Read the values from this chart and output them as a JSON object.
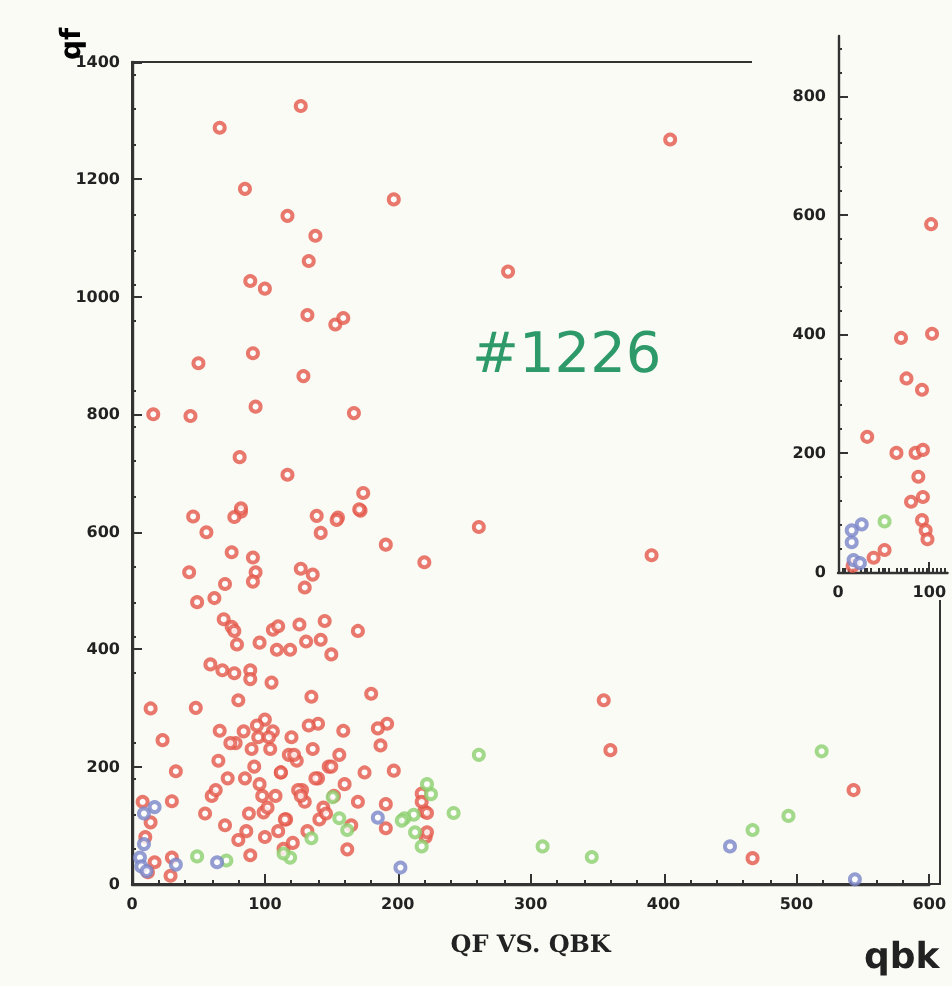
{
  "chart_data": [
    {
      "type": "scatter",
      "xlabel": "QF VS. QBK",
      "ylabel": "qf",
      "annotations": [
        "#1226",
        "qbk"
      ],
      "xlim": [
        0,
        600
      ],
      "xticks": [
        0,
        100,
        200,
        300,
        400,
        500,
        600
      ],
      "ylim": [
        0,
        1400
      ],
      "yticks": [
        0,
        200,
        400,
        600,
        800,
        1000,
        1200,
        1400
      ],
      "marker": "circle",
      "series": [
        {
          "color": "#e4574a",
          "x": [
            127,
            66,
            85,
            197,
            117,
            138,
            133,
            89,
            100,
            132,
            153,
            159,
            91,
            50,
            129,
            16,
            44,
            93,
            167,
            81,
            117,
            174,
            172,
            46,
            82,
            139,
            155,
            405,
            283,
            56,
            77,
            82,
            142,
            154,
            171,
            261,
            191,
            220,
            43,
            75,
            91,
            93,
            91,
            70,
            127,
            136,
            130,
            49,
            62,
            69,
            75,
            77,
            106,
            110,
            126,
            145,
            170,
            79,
            96,
            109,
            119,
            131,
            142,
            150,
            59,
            68,
            77,
            89,
            89,
            105,
            135,
            180,
            14,
            48,
            80,
            140,
            192,
            23,
            66,
            159,
            185,
            187,
            33,
            197,
            30,
            218,
            8,
            14,
            30,
            29,
            89,
            162,
            221,
            220,
            191,
            191,
            99,
            391,
            355,
            360,
            218,
            222,
            222,
            543,
            467,
            12,
            17,
            10,
            60,
            65,
            72,
            78,
            84,
            88,
            92,
            96,
            100,
            104,
            108,
            112,
            116,
            120,
            124,
            128,
            132,
            136,
            140,
            144,
            148,
            152,
            156,
            160,
            165,
            170,
            175,
            55,
            63,
            70,
            85,
            95,
            102,
            110,
            118,
            125,
            133,
            141,
            150,
            74,
            86,
            98,
            106,
            114,
            122,
            130,
            138,
            146,
            80,
            94,
            103,
            115,
            121,
            127,
            112,
            100,
            90
          ],
          "values": [
            1325,
            1288,
            1184,
            1166,
            1138,
            1104,
            1061,
            1027,
            1014,
            969,
            953,
            964,
            904,
            887,
            865,
            800,
            797,
            813,
            802,
            727,
            697,
            666,
            636,
            626,
            634,
            627,
            624,
            1268,
            1043,
            599,
            625,
            640,
            598,
            620,
            638,
            608,
            578,
            548,
            531,
            565,
            556,
            531,
            515,
            511,
            537,
            527,
            505,
            480,
            487,
            451,
            438,
            431,
            433,
            439,
            442,
            448,
            431,
            408,
            411,
            399,
            399,
            413,
            416,
            391,
            374,
            364,
            359,
            364,
            349,
            343,
            319,
            324,
            299,
            300,
            313,
            273,
            273,
            245,
            261,
            261,
            265,
            236,
            192,
            193,
            141,
            154,
            140,
            105,
            45,
            14,
            49,
            59,
            80,
            124,
            95,
            136,
            122,
            560,
            313,
            228,
            140,
            121,
            88,
            160,
            44,
            20,
            37,
            80,
            150,
            210,
            180,
            240,
            260,
            120,
            200,
            170,
            280,
            230,
            150,
            190,
            110,
            250,
            210,
            160,
            90,
            230,
            180,
            130,
            200,
            150,
            220,
            170,
            100,
            140,
            190,
            120,
            160,
            100,
            180,
            250,
            130,
            90,
            220,
            160,
            270,
            110,
            200,
            240,
            90,
            150,
            260,
            60,
            220,
            140,
            180,
            120,
            75,
            270,
            250,
            110,
            70,
            150,
            190,
            80,
            230
          ]
        },
        {
          "color": "#8ccf6e",
          "x": [
            261,
            519,
            225,
            212,
            205,
            242,
            213,
            218,
            309,
            346,
            494,
            467,
            49,
            71,
            222,
            203,
            156,
            162,
            119,
            114,
            151,
            135
          ],
          "values": [
            220,
            226,
            153,
            118,
            112,
            121,
            88,
            64,
            64,
            46,
            116,
            92,
            47,
            40,
            170,
            108,
            112,
            92,
            45,
            52,
            148,
            78
          ]
        },
        {
          "color": "#7b86c8",
          "x": [
            450,
            544,
            202,
            64,
            33,
            185,
            17,
            9,
            9,
            6,
            7,
            11
          ],
          "values": [
            64,
            8,
            28,
            37,
            33,
            113,
            131,
            120,
            68,
            45,
            30,
            22
          ]
        }
      ]
    },
    {
      "type": "scatter",
      "xlim": [
        0,
        120
      ],
      "xticks": [
        0,
        100
      ],
      "ylim": [
        0,
        900
      ],
      "yticks": [
        0,
        200,
        400,
        600,
        800
      ],
      "marker": "circle",
      "series": [
        {
          "color": "#e4574a",
          "x": [
            102,
            69,
            103,
            75,
            92,
            32,
            64,
            85,
            93,
            88,
            93,
            80,
            92,
            51,
            39,
            16,
            96,
            98
          ],
          "values": [
            584,
            393,
            400,
            325,
            306,
            227,
            200,
            200,
            205,
            160,
            126,
            118,
            87,
            37,
            24,
            10,
            70,
            55
          ]
        },
        {
          "color": "#8ccf6e",
          "x": [
            51
          ],
          "values": [
            85
          ]
        },
        {
          "color": "#7b86c8",
          "x": [
            26,
            15,
            17,
            24,
            15
          ],
          "values": [
            80,
            50,
            20,
            15,
            70
          ]
        }
      ]
    }
  ]
}
